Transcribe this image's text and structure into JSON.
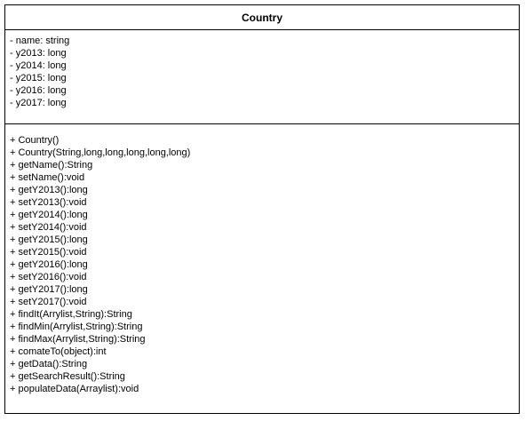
{
  "class": {
    "name": "Country",
    "attributes": [
      "- name: string",
      "- y2013: long",
      "- y2014: long",
      "- y2015: long",
      "- y2016: long",
      "- y2017: long"
    ],
    "methods": [
      "+ Country()",
      "+ Country(String,long,long,long,long,long)",
      "+ getName():String",
      "+ setName():void",
      "+ getY2013():long",
      "+ setY2013():void",
      "+ getY2014():long",
      "+ setY2014():void",
      "+ getY2015():long",
      "+ setY2015():void",
      "+ getY2016():long",
      "+ setY2016():void",
      "+ getY2017():long",
      "+ setY2017():void",
      "+ findIt(Arrylist,String):String",
      "+ findMin(Arrylist,String):String",
      "+ findMax(Arrylist,String):String",
      "+ comateTo(object):int",
      "+ getData():String",
      "+ getSearchResult():String",
      "+ populateData(Arraylist):void"
    ]
  }
}
